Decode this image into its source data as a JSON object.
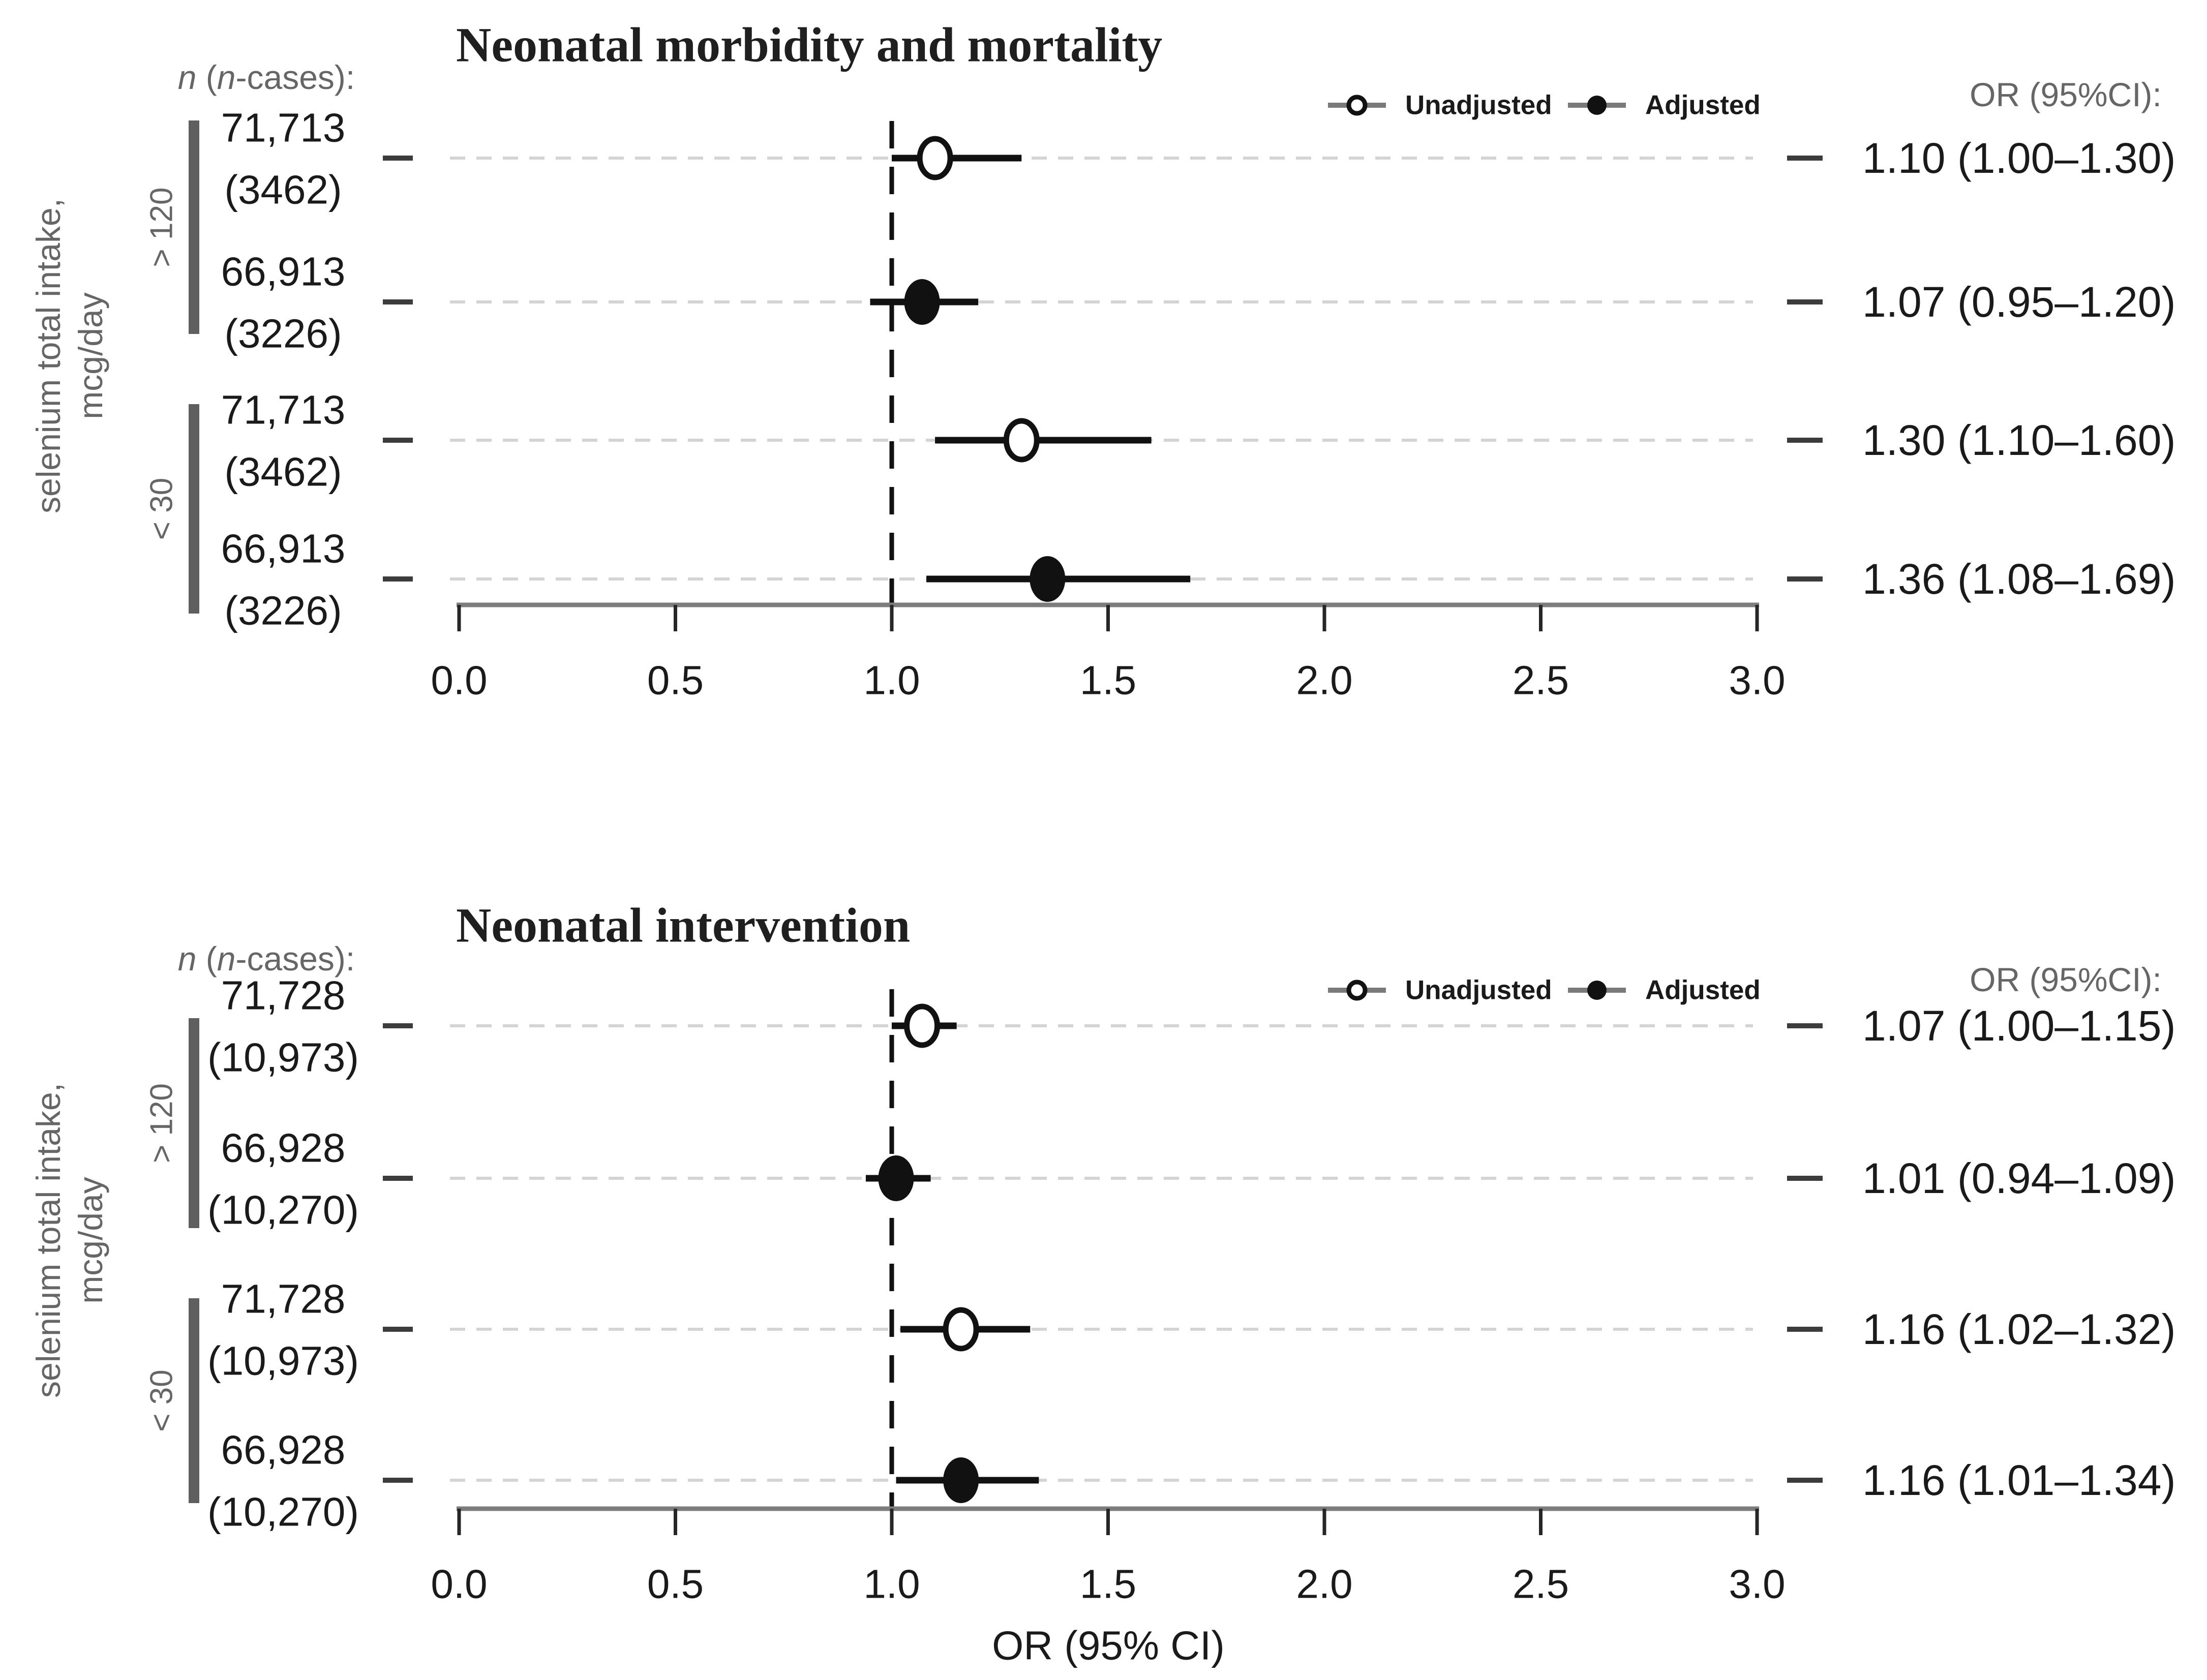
{
  "figure": {
    "background": "#ffffff"
  },
  "chart_data": {
    "type": "forest",
    "x_axis": {
      "label": "OR (95% CI)",
      "min": 0.0,
      "max": 3.0,
      "tick_values": [
        0,
        0.5,
        1,
        1.5,
        2,
        2.5,
        3
      ],
      "tick_labels": [
        "0.0",
        "0.5",
        "1.0",
        "1.5",
        "2.0",
        "2.5",
        "3.0"
      ],
      "reference_line": 1.0
    },
    "y_axis_label_lines": [
      "selenium total intake,",
      "mcg/day"
    ],
    "n_header_segments": [
      {
        "text": "n",
        "italic": true
      },
      {
        "text": " (",
        "italic": false
      },
      {
        "text": "n",
        "italic": true
      },
      {
        "text": "-cases):",
        "italic": false
      }
    ],
    "or_header": "OR (95%CI):",
    "legend": [
      {
        "label": "Unadjusted",
        "marker": "open-circle"
      },
      {
        "label": "Adjusted",
        "marker": "filled-circle"
      }
    ],
    "colors": {
      "ink": "#111111",
      "text": "#1a1a1a",
      "muted": "#666666",
      "grid": "#d4d4d4",
      "axis_line": "#7d7d7d",
      "axis_tick": "#262626",
      "row_tick": "#3c3c3c",
      "group_bar": "#5f5f5f",
      "legend_line": "#7a7a7a",
      "background": "#ffffff"
    },
    "panels": [
      {
        "title": "Neonatal morbidity and mortality",
        "show_x_axis_label": false,
        "groups": [
          {
            "label": "> 120",
            "row_indexes": [
              0,
              1
            ]
          },
          {
            "label": "< 30",
            "row_indexes": [
              2,
              3
            ]
          }
        ],
        "rows": [
          {
            "n": "71,713",
            "cases": "(3462)",
            "series": "Unadjusted",
            "or": 1.1,
            "ci_low": 1.0,
            "ci_high": 1.3,
            "or_label": "1.10 (1.00–1.30)"
          },
          {
            "n": "66,913",
            "cases": "(3226)",
            "series": "Adjusted",
            "or": 1.07,
            "ci_low": 0.95,
            "ci_high": 1.2,
            "or_label": "1.07 (0.95–1.20)"
          },
          {
            "n": "71,713",
            "cases": "(3462)",
            "series": "Unadjusted",
            "or": 1.3,
            "ci_low": 1.1,
            "ci_high": 1.6,
            "or_label": "1.30 (1.10–1.60)"
          },
          {
            "n": "66,913",
            "cases": "(3226)",
            "series": "Adjusted",
            "or": 1.36,
            "ci_low": 1.08,
            "ci_high": 1.69,
            "or_label": "1.36 (1.08–1.69)"
          }
        ]
      },
      {
        "title": "Neonatal intervention",
        "show_x_axis_label": true,
        "groups": [
          {
            "label": "> 120",
            "row_indexes": [
              0,
              1
            ]
          },
          {
            "label": "< 30",
            "row_indexes": [
              2,
              3
            ]
          }
        ],
        "rows": [
          {
            "n": "71,728",
            "cases": "(10,973)",
            "series": "Unadjusted",
            "or": 1.07,
            "ci_low": 1.0,
            "ci_high": 1.15,
            "or_label": "1.07 (1.00–1.15)"
          },
          {
            "n": "66,928",
            "cases": "(10,270)",
            "series": "Adjusted",
            "or": 1.01,
            "ci_low": 0.94,
            "ci_high": 1.09,
            "or_label": "1.01 (0.94–1.09)"
          },
          {
            "n": "71,728",
            "cases": "(10,973)",
            "series": "Unadjusted",
            "or": 1.16,
            "ci_low": 1.02,
            "ci_high": 1.32,
            "or_label": "1.16 (1.02–1.32)"
          },
          {
            "n": "66,928",
            "cases": "(10,270)",
            "series": "Adjusted",
            "or": 1.16,
            "ci_low": 1.01,
            "ci_high": 1.34,
            "or_label": "1.16 (1.01–1.34)"
          }
        ]
      }
    ]
  }
}
